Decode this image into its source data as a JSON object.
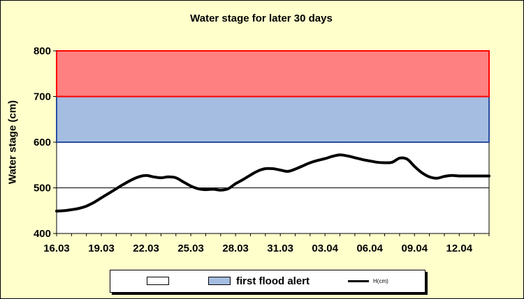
{
  "chart_data": {
    "type": "line",
    "title": "Water stage for later 30 days",
    "xlabel": "",
    "ylabel": "Water stage (cm)",
    "ylim": [
      400,
      800
    ],
    "yticks": [
      400,
      500,
      600,
      700,
      800
    ],
    "x_tick_labels": [
      "16.03",
      "19.03",
      "22.03",
      "25.03",
      "28.03",
      "31.03",
      "03.04",
      "06.04",
      "09.04",
      "12.04"
    ],
    "x_tick_every_days": 3,
    "days": 29,
    "bands": [
      {
        "name": "first flood alert",
        "from": 600,
        "to": 700,
        "fill": "#a5bde0",
        "edge": "#2a4ea0"
      },
      {
        "name": "",
        "from": 700,
        "to": 800,
        "fill": "#ff8080",
        "edge": "#ff0000"
      }
    ],
    "series": [
      {
        "name": "H(cm)",
        "color": "#000000",
        "x": [
          0,
          0.5,
          1,
          1.5,
          2,
          2.5,
          3,
          3.5,
          4,
          4.5,
          5,
          5.5,
          6,
          6.5,
          7,
          7.5,
          8,
          8.5,
          9,
          9.5,
          10,
          10.5,
          11,
          11.5,
          12,
          12.5,
          13,
          13.5,
          14,
          14.5,
          15,
          15.5,
          16,
          16.5,
          17,
          17.5,
          18,
          18.5,
          19,
          19.5,
          20,
          20.5,
          21,
          21.5,
          22,
          22.5,
          23,
          23.5,
          24,
          24.5,
          25,
          25.5,
          26,
          26.5,
          27,
          27.5,
          28,
          28.5,
          29
        ],
        "values": [
          449,
          450,
          452,
          455,
          460,
          468,
          478,
          488,
          498,
          508,
          517,
          524,
          527,
          524,
          522,
          524,
          522,
          513,
          504,
          498,
          496,
          497,
          495,
          498,
          509,
          518,
          528,
          537,
          542,
          542,
          539,
          536,
          541,
          548,
          555,
          560,
          564,
          569,
          572,
          570,
          566,
          562,
          559,
          556,
          555,
          556,
          565,
          563,
          547,
          533,
          524,
          521,
          525,
          527,
          526,
          526,
          526,
          526,
          526
        ]
      }
    ]
  },
  "legend": {
    "items": [
      {
        "label": "",
        "color": "#ffffff"
      },
      {
        "label": "first flood alert",
        "color": "#a5bde0"
      },
      {
        "label": "H(cm)",
        "color": "#000000"
      }
    ]
  }
}
